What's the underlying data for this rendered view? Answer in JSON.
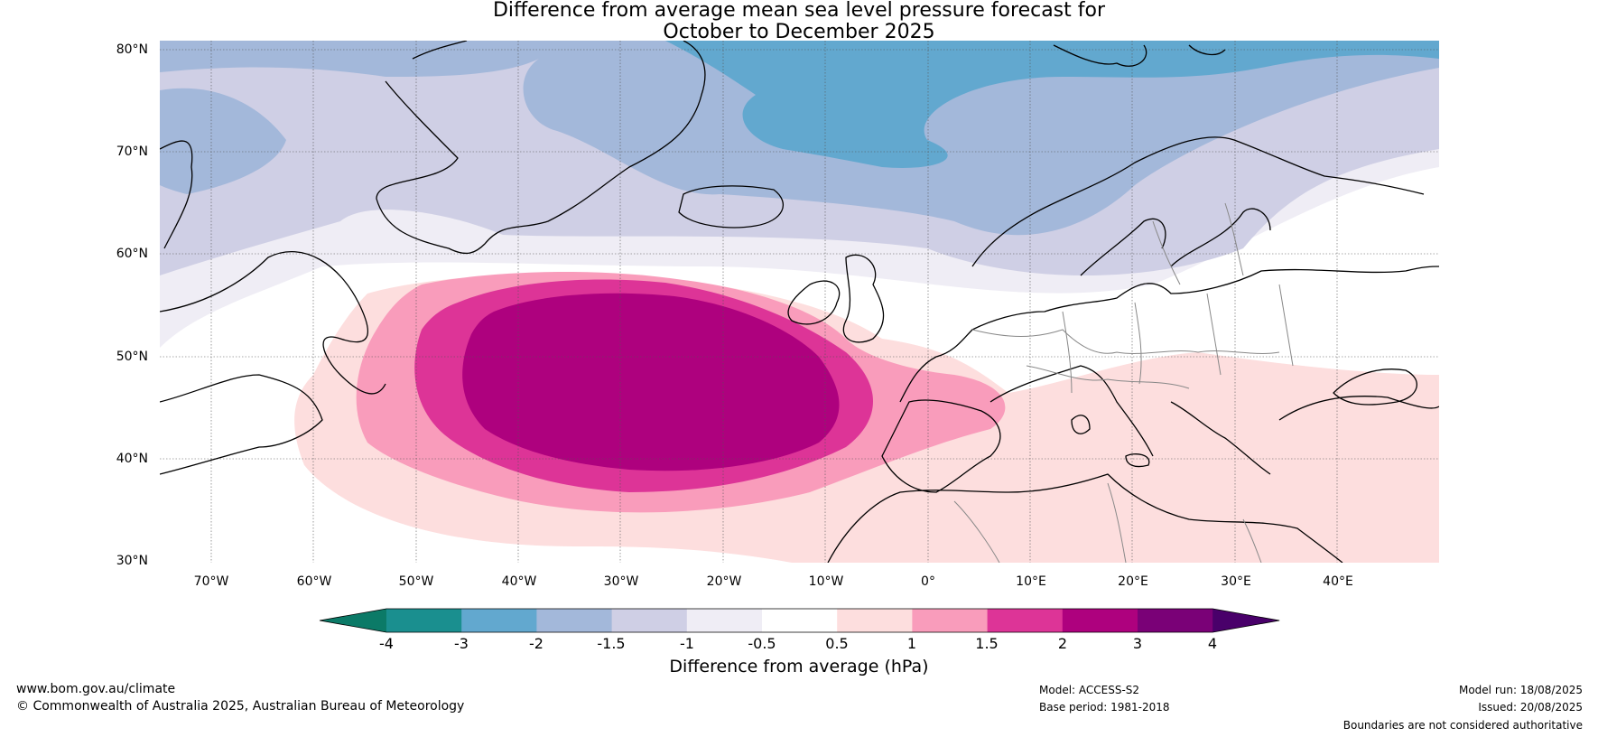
{
  "title_line1": "Difference from average mean sea level pressure forecast for",
  "title_line2": "October to December 2025",
  "map": {
    "lat_labels": [
      "80°N",
      "70°N",
      "60°N",
      "50°N",
      "40°N",
      "30°N"
    ],
    "lon_labels": [
      "70°W",
      "60°W",
      "50°W",
      "40°W",
      "30°W",
      "20°W",
      "10°W",
      "0°",
      "10°E",
      "20°E",
      "30°E",
      "40°E"
    ],
    "region": "North Atlantic and Europe",
    "extent": {
      "lon": [
        -75,
        50
      ],
      "lat": [
        30,
        81
      ]
    }
  },
  "colorbar": {
    "ticks": [
      "-4",
      "-3",
      "-2",
      "-1.5",
      "-1",
      "-0.5",
      "0.5",
      "1",
      "1.5",
      "2",
      "3",
      "4"
    ],
    "colors": [
      "#1a8f8f",
      "#62a8cf",
      "#a3b8da",
      "#cfcfe5",
      "#efedf5",
      "#ffffff",
      "#fddede",
      "#f99cbb",
      "#dd3497",
      "#ae017e",
      "#7a0177",
      "#49006a"
    ],
    "under_color": "#0b7a67",
    "over_color": "#49006a",
    "label": "Difference from average (hPa)"
  },
  "footer": {
    "website": "www.bom.gov.au/climate",
    "copyright": "© Commonwealth of Australia 2025, Australian Bureau of Meteorology",
    "model": "Model: ACCESS-S2",
    "base_period": "Base period: 1981-2018",
    "model_run": "Model run: 18/08/2025",
    "issued": "Issued: 20/08/2025",
    "disclaimer": "Boundaries are not considered authoritative"
  }
}
